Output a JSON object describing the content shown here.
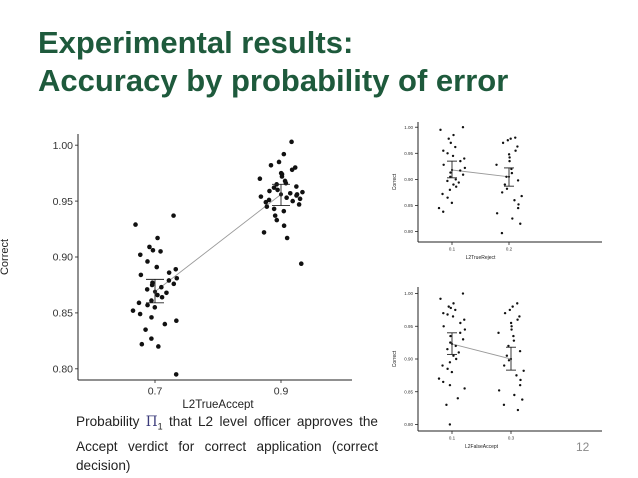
{
  "slide": {
    "title_line1": "Experimental results:",
    "title_line2": "Accuracy by probability of error",
    "caption": {
      "prefix": "Probability ",
      "symbol": "Π",
      "subscript": "1",
      "suffix": " that L2 level officer approves the Accept verdict for correct application (correct decision)"
    },
    "page_number": "12",
    "colors": {
      "title": "#1e5a3c",
      "points": "#111111",
      "trend_line": "#9a9a9a"
    }
  },
  "chart_data": [
    {
      "type": "scatter",
      "xlabel": "L2TrueAccept",
      "ylabel": "Correct",
      "x_ticks": [
        "0.7",
        "0.9"
      ],
      "y_ticks": [
        "0.80",
        "0.85",
        "0.90",
        "0.95",
        "1.00"
      ],
      "ylim": [
        0.79,
        1.01
      ],
      "groups": [
        {
          "x": "0.7",
          "values": [
            0.937,
            0.929,
            0.917,
            0.909,
            0.906,
            0.905,
            0.902,
            0.896,
            0.891,
            0.889,
            0.886,
            0.884,
            0.881,
            0.879,
            0.877,
            0.876,
            0.875,
            0.873,
            0.871,
            0.868,
            0.866,
            0.864,
            0.861,
            0.859,
            0.857,
            0.855,
            0.852,
            0.849,
            0.846,
            0.843,
            0.84,
            0.835,
            0.827,
            0.822,
            0.82,
            0.795
          ],
          "mean": 0.869,
          "ci_low": 0.859,
          "ci_high": 0.88
        },
        {
          "x": "0.9",
          "values": [
            1.003,
            0.992,
            0.985,
            0.982,
            0.98,
            0.978,
            0.975,
            0.974,
            0.972,
            0.97,
            0.968,
            0.966,
            0.965,
            0.963,
            0.962,
            0.96,
            0.959,
            0.958,
            0.957,
            0.956,
            0.955,
            0.954,
            0.953,
            0.952,
            0.951,
            0.95,
            0.949,
            0.947,
            0.945,
            0.943,
            0.941,
            0.937,
            0.933,
            0.928,
            0.922,
            0.917,
            0.894
          ],
          "mean": 0.956,
          "ci_low": 0.946,
          "ci_high": 0.965
        }
      ],
      "grid": false,
      "legend": "none"
    },
    {
      "type": "scatter",
      "xlabel": "L2TrueReject",
      "ylabel": "Correct",
      "x_ticks": [
        "0.1",
        "0.2"
      ],
      "y_ticks": [
        "0.80",
        "0.85",
        "0.90",
        "0.95",
        "1.00"
      ],
      "ylim": [
        0.78,
        1.01
      ],
      "groups": [
        {
          "x": "0.1",
          "values": [
            1.0,
            0.995,
            0.985,
            0.978,
            0.97,
            0.962,
            0.955,
            0.95,
            0.945,
            0.94,
            0.935,
            0.928,
            0.922,
            0.917,
            0.913,
            0.909,
            0.905,
            0.9,
            0.897,
            0.894,
            0.89,
            0.886,
            0.88,
            0.872,
            0.865,
            0.855,
            0.845,
            0.838
          ],
          "mean": 0.918,
          "ci_low": 0.903,
          "ci_high": 0.935
        },
        {
          "x": "0.2",
          "values": [
            0.98,
            0.978,
            0.975,
            0.97,
            0.963,
            0.955,
            0.948,
            0.942,
            0.935,
            0.928,
            0.92,
            0.912,
            0.905,
            0.898,
            0.89,
            0.882,
            0.875,
            0.868,
            0.86,
            0.852,
            0.845,
            0.835,
            0.825,
            0.815,
            0.797
          ],
          "mean": 0.905,
          "ci_low": 0.887,
          "ci_high": 0.922
        }
      ],
      "grid": false,
      "legend": "none"
    },
    {
      "type": "scatter",
      "xlabel": "L2FalseAccept",
      "ylabel": "Correct",
      "x_ticks": [
        "0.1",
        "0.3"
      ],
      "y_ticks": [
        "0.80",
        "0.85",
        "0.90",
        "0.95",
        "1.00"
      ],
      "ylim": [
        0.79,
        1.01
      ],
      "groups": [
        {
          "x": "0.1",
          "values": [
            1.0,
            0.992,
            0.985,
            0.98,
            0.978,
            0.975,
            0.97,
            0.968,
            0.965,
            0.96,
            0.955,
            0.95,
            0.945,
            0.94,
            0.935,
            0.93,
            0.925,
            0.92,
            0.915,
            0.91,
            0.905,
            0.9,
            0.895,
            0.89,
            0.885,
            0.88,
            0.87,
            0.865,
            0.86,
            0.855,
            0.84,
            0.83,
            0.8
          ],
          "mean": 0.923,
          "ci_low": 0.907,
          "ci_high": 0.94
        },
        {
          "x": "0.3",
          "values": [
            0.985,
            0.98,
            0.975,
            0.97,
            0.965,
            0.96,
            0.955,
            0.95,
            0.945,
            0.94,
            0.935,
            0.928,
            0.92,
            0.912,
            0.905,
            0.898,
            0.89,
            0.882,
            0.875,
            0.868,
            0.86,
            0.852,
            0.845,
            0.838,
            0.83,
            0.822
          ],
          "mean": 0.9,
          "ci_low": 0.883,
          "ci_high": 0.918
        }
      ],
      "grid": false,
      "legend": "none"
    }
  ]
}
